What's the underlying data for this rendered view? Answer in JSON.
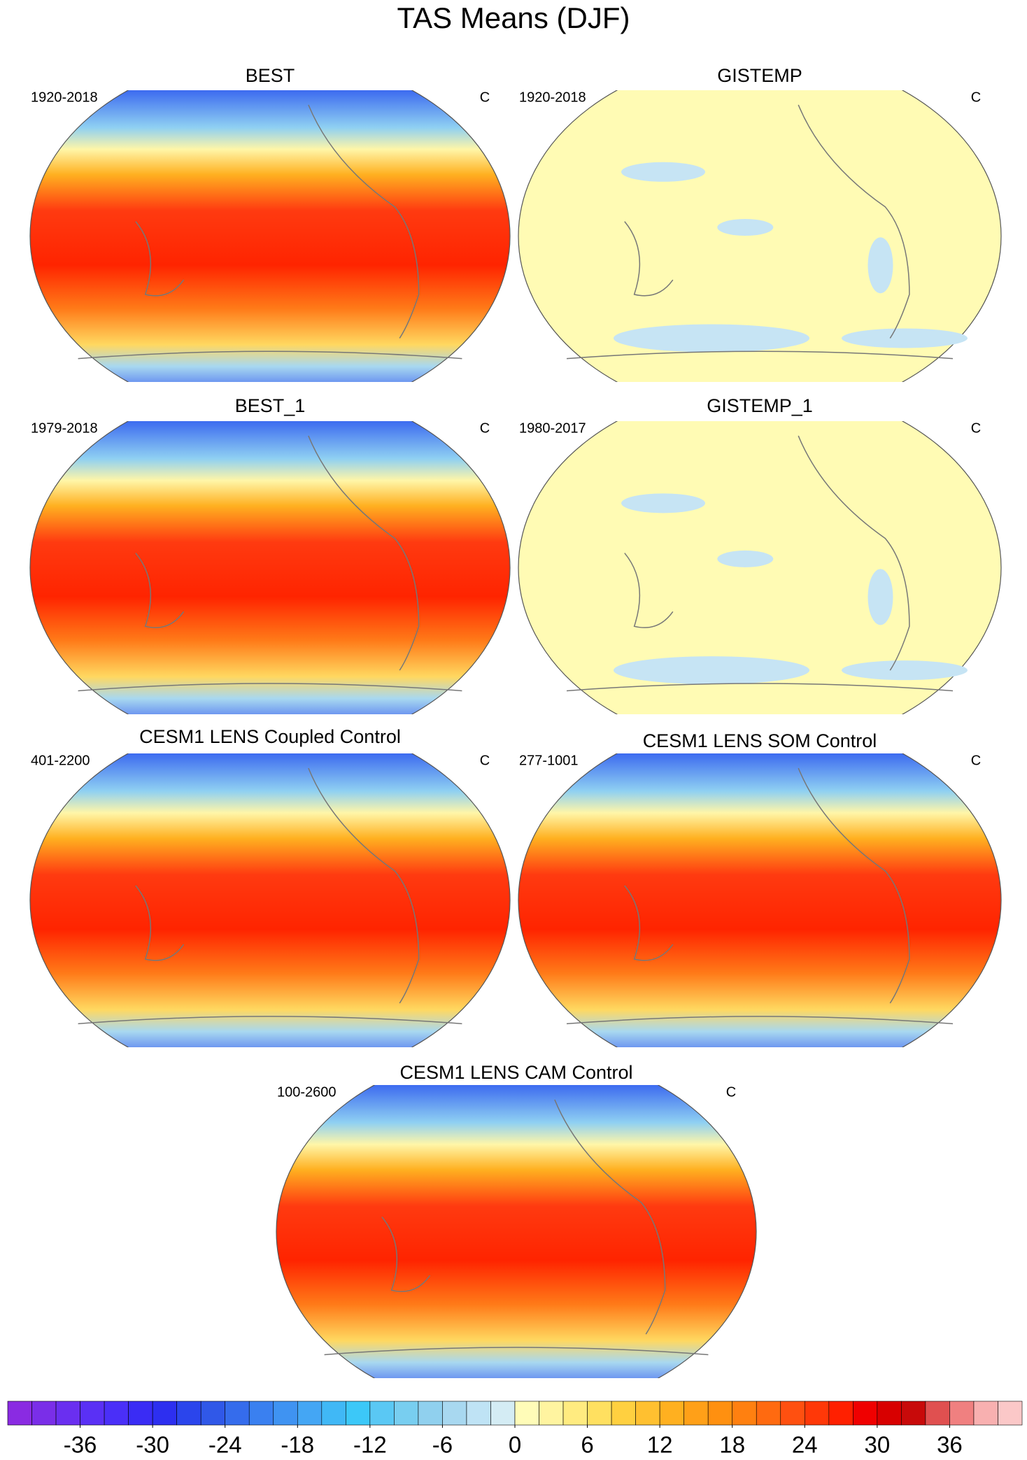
{
  "title": "TAS Means (DJF)",
  "panels": [
    {
      "title": "BEST",
      "period": "1920-2018",
      "units": "C"
    },
    {
      "title": "GISTEMP",
      "period": "1920-2018",
      "units": "C"
    },
    {
      "title": "BEST_1",
      "period": "1979-2018",
      "units": "C"
    },
    {
      "title": "GISTEMP_1",
      "period": "1980-2017",
      "units": "C"
    },
    {
      "title": "CESM1 LENS Coupled Control",
      "period": "401-2200",
      "units": "C"
    },
    {
      "title": "CESM1 LENS SOM Control",
      "period": "277-1001",
      "units": "C"
    },
    {
      "title": "CESM1 LENS CAM Control",
      "period": "100-2600",
      "units": "C"
    }
  ],
  "colorbar": {
    "ticks": [
      -36,
      -30,
      -24,
      -18,
      -12,
      -6,
      0,
      6,
      12,
      18,
      24,
      30,
      36
    ],
    "colors": [
      "#8a2be2",
      "#7a2ee8",
      "#6a2ff0",
      "#5a30f5",
      "#4a2ff8",
      "#3a2cf5",
      "#2d2ff0",
      "#2b45ec",
      "#3058e8",
      "#356cec",
      "#3a80f0",
      "#3f93f2",
      "#44a6f4",
      "#40b8f6",
      "#3cc8f8",
      "#5ac8f4",
      "#78cef0",
      "#90d0ee",
      "#a8d8f0",
      "#bfe3f5",
      "#d4ecf4",
      "#fffcb8",
      "#fff4a0",
      "#ffeb80",
      "#ffe060",
      "#ffd040",
      "#ffc030",
      "#ffb020",
      "#ffa018",
      "#ff9010",
      "#ff8010",
      "#ff6a10",
      "#ff5010",
      "#ff3808",
      "#ff2000",
      "#f00000",
      "#d80000",
      "#c80a0a",
      "#e05050",
      "#f08080",
      "#f8b0b0",
      "#fbc8c8"
    ]
  }
}
